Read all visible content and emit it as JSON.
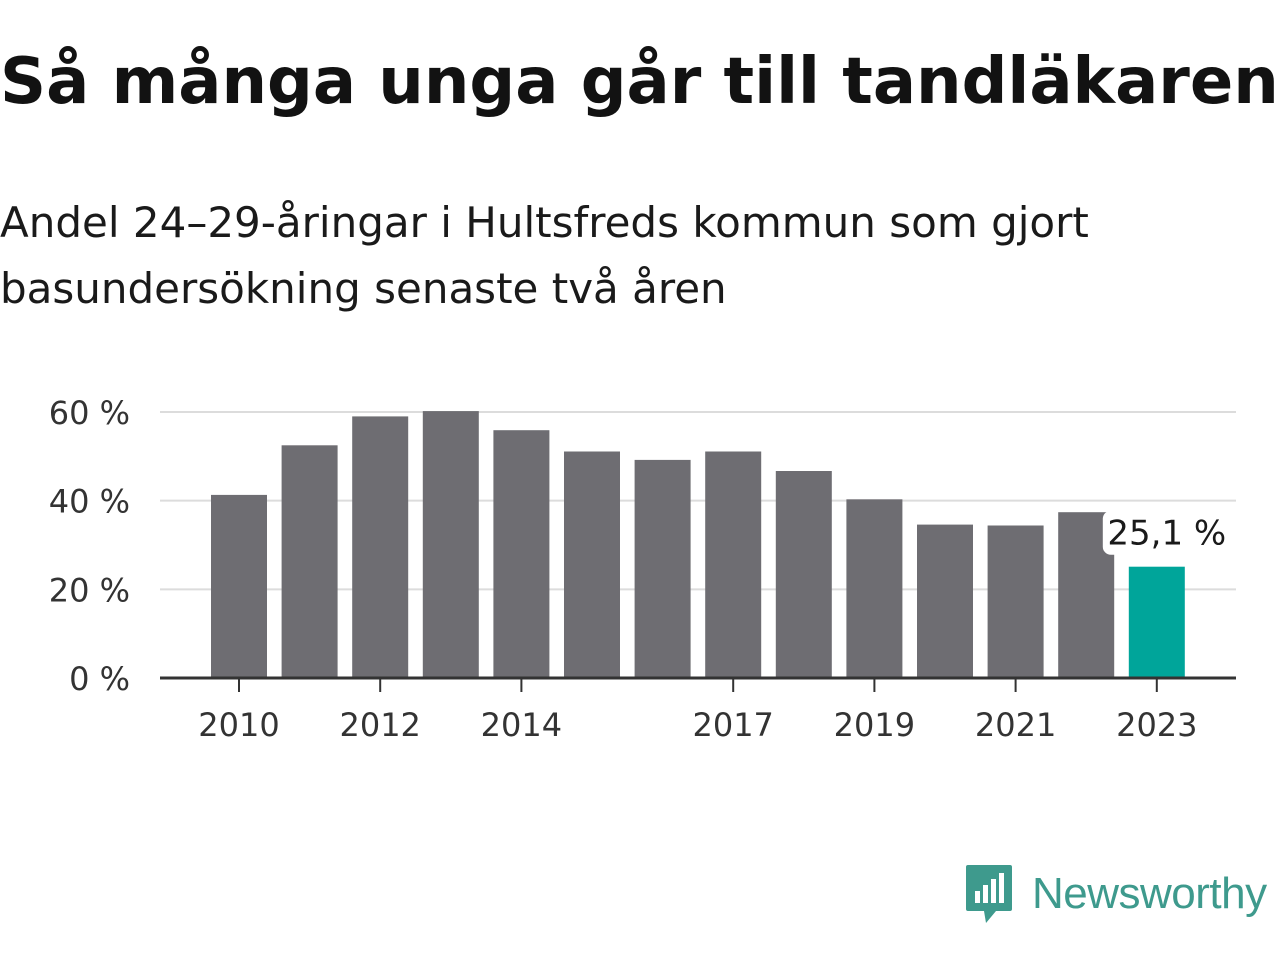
{
  "title": "Så många unga går till tandläkaren",
  "subtitle": "Andel 24–29-åringar i Hultsfreds kommun som gjort basundersökning senaste två åren",
  "brand": {
    "name": "Newsworthy",
    "icon": "newsworthy-logo-icon"
  },
  "colors": {
    "bar": "#6e6d72",
    "highlight": "#00a59a",
    "grid": "#dcdcdc",
    "axis": "#333333",
    "brand": "#3e9a8d"
  },
  "chart_data": {
    "type": "bar",
    "categories": [
      "2010",
      "2011",
      "2012",
      "2013",
      "2014",
      "2015",
      "2016",
      "2017",
      "2018",
      "2019",
      "2020",
      "2021",
      "2022",
      "2023"
    ],
    "values": [
      41.3,
      52.5,
      59.0,
      60.2,
      55.9,
      51.1,
      49.2,
      51.1,
      46.7,
      40.3,
      34.6,
      34.4,
      37.4,
      25.1
    ],
    "tick_labels_x": [
      "2010",
      "2012",
      "2014",
      "2017",
      "2019",
      "2021",
      "2023"
    ],
    "yticks": [
      0,
      20,
      40,
      60
    ],
    "ytick_labels": [
      "0 %",
      "20 %",
      "40 %",
      "60 %"
    ],
    "ylim": [
      0,
      60
    ],
    "highlight_index": 13,
    "annotation": "25,1 %",
    "grid": true
  }
}
